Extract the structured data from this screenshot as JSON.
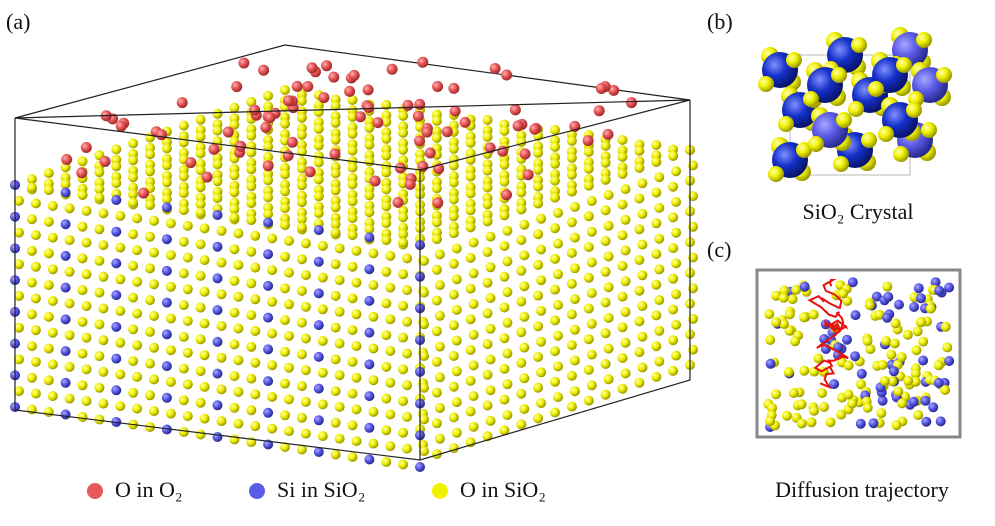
{
  "panels": {
    "a": "(a)",
    "b": "(b)",
    "c": "(c)"
  },
  "captions": {
    "b": "SiO₂ Crystal",
    "c": "Diffusion trajectory"
  },
  "legend": [
    {
      "label": "O in O₂",
      "color": "#e8575a"
    },
    {
      "label": "Si in SiO₂",
      "color": "#5a5ae6"
    },
    {
      "label": "O in SiO₂",
      "color": "#f2f200"
    }
  ]
}
